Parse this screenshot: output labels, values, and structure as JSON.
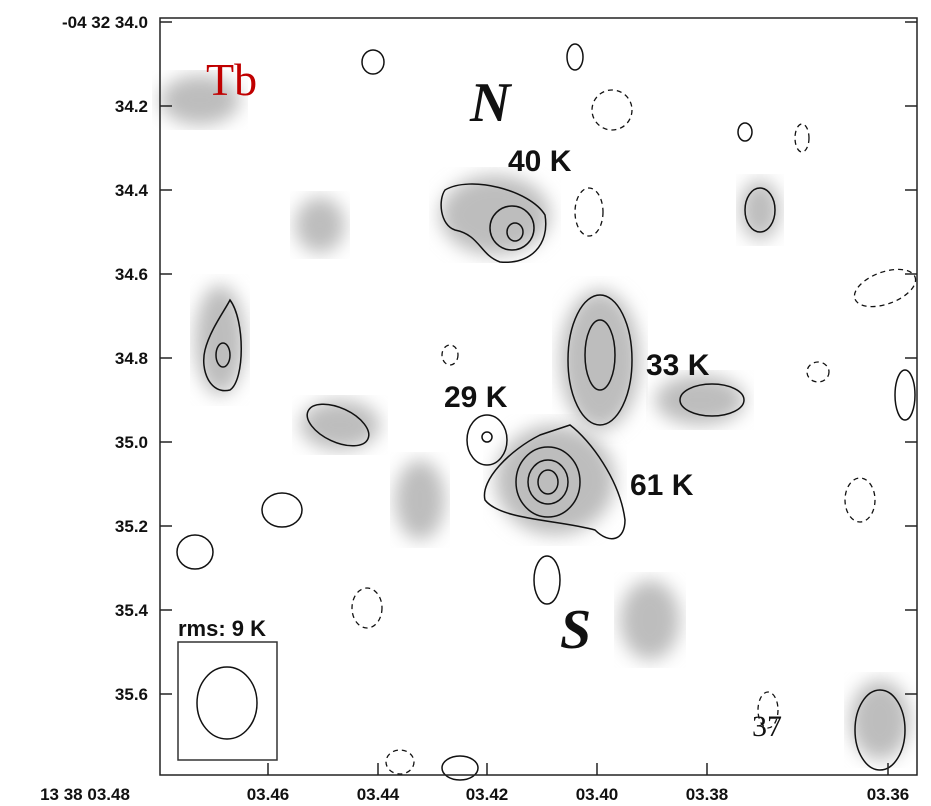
{
  "panel_label": "Tb",
  "yticks": [
    "-04 32 34.0",
    "34.2",
    "34.4",
    "34.6",
    "34.8",
    "35.0",
    "35.2",
    "35.4",
    "35.6"
  ],
  "xticks": [
    "13 38 03.48",
    "03.46",
    "03.44",
    "03.42",
    "03.40",
    "03.38",
    "03.36"
  ],
  "annotations": {
    "north": "N",
    "south": "S",
    "n_temp": "40 K",
    "t29": "29 K",
    "t33": "33 K",
    "t61": "61 K",
    "rms": "rms: 9 K"
  },
  "page_number": "37"
}
